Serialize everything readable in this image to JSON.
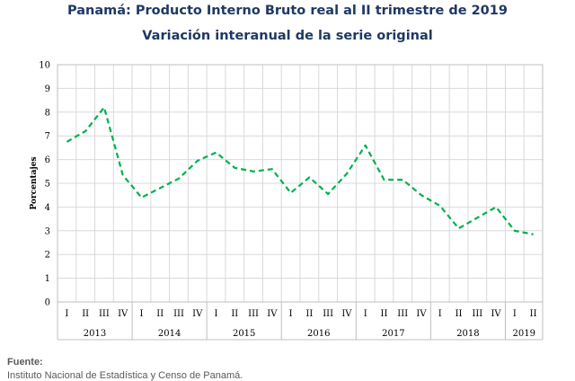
{
  "chart_data": {
    "type": "line",
    "title": "Panamá: Producto Interno Bruto real al II trimestre de 2019",
    "subtitle": "Variación interanual de la serie original",
    "ylabel": "Porcentajes",
    "xlabel": "",
    "ylim": [
      0,
      10
    ],
    "yticks": [
      0,
      1,
      2,
      3,
      4,
      5,
      6,
      7,
      8,
      9,
      10
    ],
    "grid": true,
    "line_color": "#00b050",
    "line_style": "dashed",
    "quarters": [
      "I",
      "II",
      "III",
      "IV",
      "I",
      "II",
      "III",
      "IV",
      "I",
      "II",
      "III",
      "IV",
      "I",
      "II",
      "III",
      "IV",
      "I",
      "II",
      "III",
      "IV",
      "I",
      "II",
      "III",
      "IV",
      "I",
      "II"
    ],
    "years": [
      {
        "label": "2013",
        "quarters": 4
      },
      {
        "label": "2014",
        "quarters": 4
      },
      {
        "label": "2015",
        "quarters": 4
      },
      {
        "label": "2016",
        "quarters": 4
      },
      {
        "label": "2017",
        "quarters": 4
      },
      {
        "label": "2018",
        "quarters": 4
      },
      {
        "label": "2019",
        "quarters": 2
      }
    ],
    "values": [
      6.75,
      7.2,
      8.2,
      5.35,
      4.4,
      4.8,
      5.2,
      5.95,
      6.3,
      5.65,
      5.5,
      5.6,
      4.6,
      5.25,
      4.55,
      5.4,
      6.6,
      5.15,
      5.15,
      4.5,
      4.05,
      3.1,
      3.55,
      4.0,
      3.0,
      2.85
    ]
  },
  "source": {
    "label": "Fuente:",
    "text": "Instituto Nacional de Estadística y Censo de Panamá."
  }
}
